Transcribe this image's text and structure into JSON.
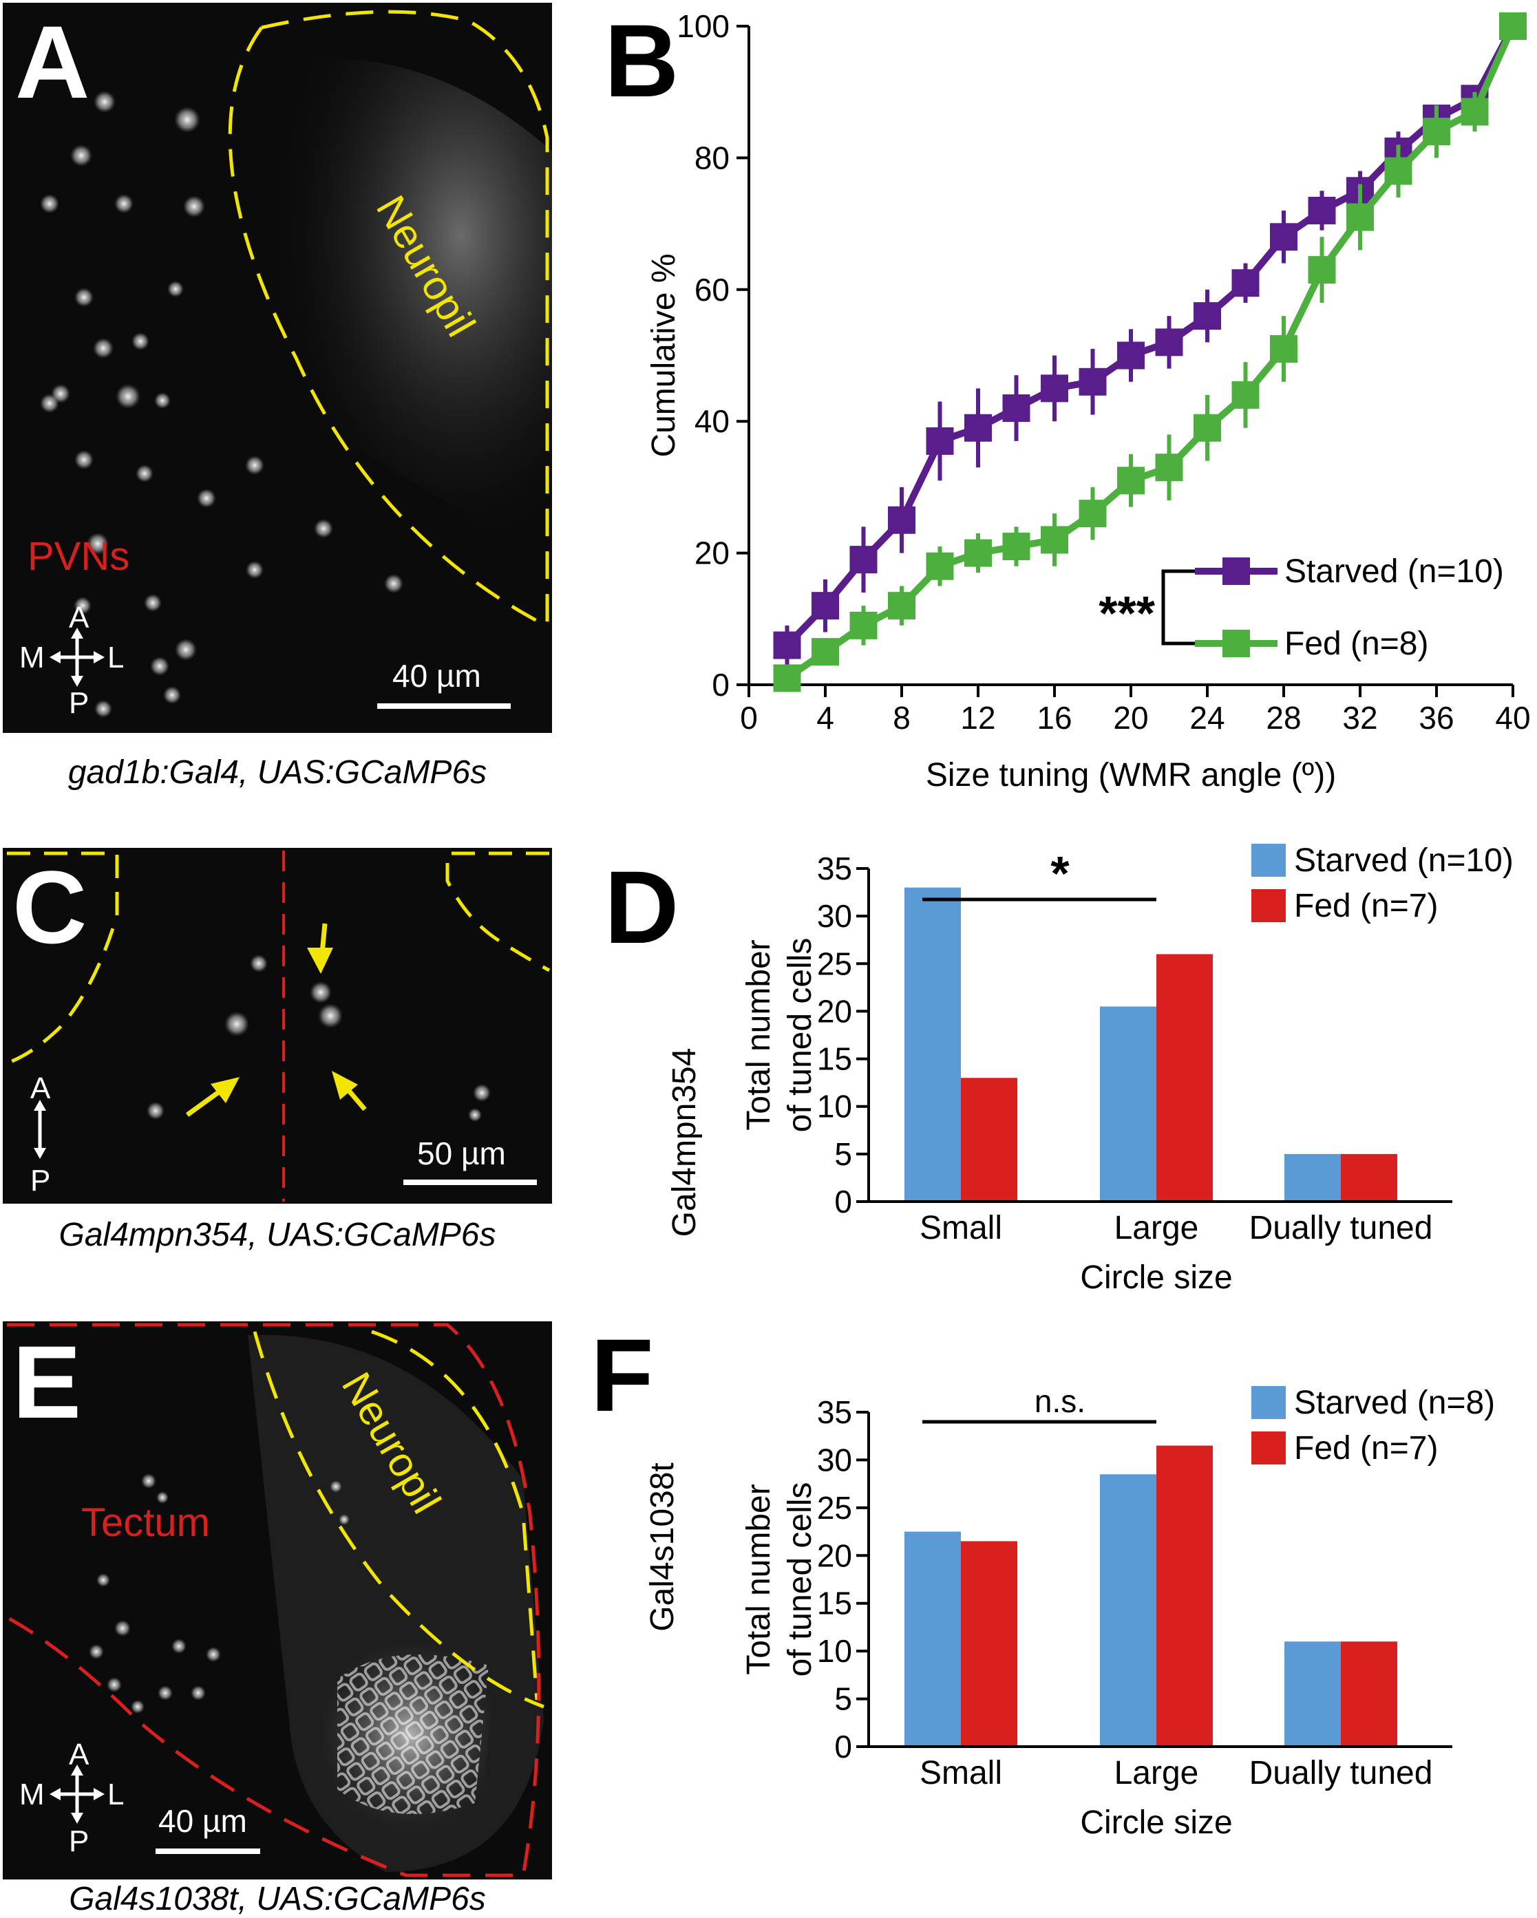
{
  "panels": {
    "A": {
      "letter": "A",
      "region_label": "Neuropil",
      "cell_label": "PVNs",
      "scale_bar": "40 µm",
      "orientation": {
        "a": "A",
        "p": "P",
        "m": "M",
        "l": "L"
      },
      "caption": "gad1b:Gal4, UAS:GCaMP6s"
    },
    "C": {
      "letter": "C",
      "scale_bar": "50 µm",
      "orientation": {
        "a": "A",
        "p": "P"
      },
      "caption": "Gal4mpn354, UAS:GCaMP6s"
    },
    "E": {
      "letter": "E",
      "region_label": "Neuropil",
      "cell_label": "Tectum",
      "scale_bar": "40 µm",
      "orientation": {
        "a": "A",
        "p": "P",
        "m": "M",
        "l": "L"
      },
      "caption": "Gal4s1038t, UAS:GCaMP6s"
    },
    "B": {
      "letter": "B"
    },
    "D": {
      "letter": "D",
      "row_label": "Gal4mpn354"
    },
    "F": {
      "letter": "F",
      "row_label": "Gal4s1038t"
    }
  },
  "colors": {
    "starved_line": "#5a1e8c",
    "fed_line": "#4caf3e",
    "starved_bar": "#5b9bd5",
    "fed_bar": "#d8201f",
    "annotation_yellow": "#f2e600",
    "annotation_red": "#d8201f"
  },
  "chart_data": [
    {
      "id": "B",
      "type": "line",
      "xlabel": "Size tuning (WMR angle (º))",
      "ylabel": "Cumulative %",
      "xlim": [
        0,
        40
      ],
      "ylim": [
        0,
        100
      ],
      "xticks": [
        0,
        4,
        8,
        12,
        16,
        20,
        24,
        28,
        32,
        36,
        40
      ],
      "yticks": [
        0,
        20,
        40,
        60,
        80,
        100
      ],
      "x": [
        2,
        4,
        6,
        8,
        10,
        12,
        14,
        16,
        18,
        20,
        22,
        24,
        26,
        28,
        30,
        32,
        34,
        36,
        38,
        40
      ],
      "series": [
        {
          "name": "Starved (n=10)",
          "values": [
            6,
            12,
            19,
            25,
            37,
            39,
            42,
            45,
            46,
            50,
            52,
            56,
            61,
            68,
            72,
            75,
            81,
            86,
            89,
            100
          ],
          "errors": [
            3,
            4,
            5,
            5,
            6,
            6,
            5,
            5,
            5,
            4,
            4,
            4,
            3,
            4,
            3,
            3,
            3,
            2,
            2,
            1
          ]
        },
        {
          "name": "Fed (n=8)",
          "values": [
            1,
            5,
            9,
            12,
            18,
            20,
            21,
            22,
            26,
            31,
            33,
            39,
            44,
            51,
            63,
            71,
            78,
            84,
            87,
            100
          ],
          "errors": [
            1,
            2,
            3,
            3,
            3,
            3,
            3,
            4,
            4,
            4,
            5,
            5,
            5,
            5,
            5,
            5,
            4,
            4,
            3,
            1
          ]
        }
      ],
      "significance": "***",
      "legend": "right"
    },
    {
      "id": "D",
      "type": "bar",
      "categories": [
        "Small",
        "Large",
        "Dually tuned"
      ],
      "series": [
        {
          "name": "Starved (n=10)",
          "values": [
            33,
            20.5,
            5
          ]
        },
        {
          "name": "Fed (n=7)",
          "values": [
            13,
            26,
            5
          ]
        }
      ],
      "xlabel": "Circle size",
      "ylabel_lines": [
        "Total number",
        "of tuned cells"
      ],
      "ylim": [
        0,
        35
      ],
      "yticks": [
        0,
        5,
        10,
        15,
        20,
        25,
        30,
        35
      ],
      "significance": "*",
      "legend": "top-right"
    },
    {
      "id": "F",
      "type": "bar",
      "categories": [
        "Small",
        "Large",
        "Dually tuned"
      ],
      "series": [
        {
          "name": "Starved (n=8)",
          "values": [
            22.5,
            28.5,
            11
          ]
        },
        {
          "name": "Fed (n=7)",
          "values": [
            21.5,
            31.5,
            11
          ]
        }
      ],
      "xlabel": "Circle size",
      "ylabel_lines": [
        "Total number",
        "of tuned cells"
      ],
      "ylim": [
        0,
        35
      ],
      "yticks": [
        0,
        5,
        10,
        15,
        20,
        25,
        30,
        35
      ],
      "significance": "n.s.",
      "legend": "top-right"
    }
  ]
}
